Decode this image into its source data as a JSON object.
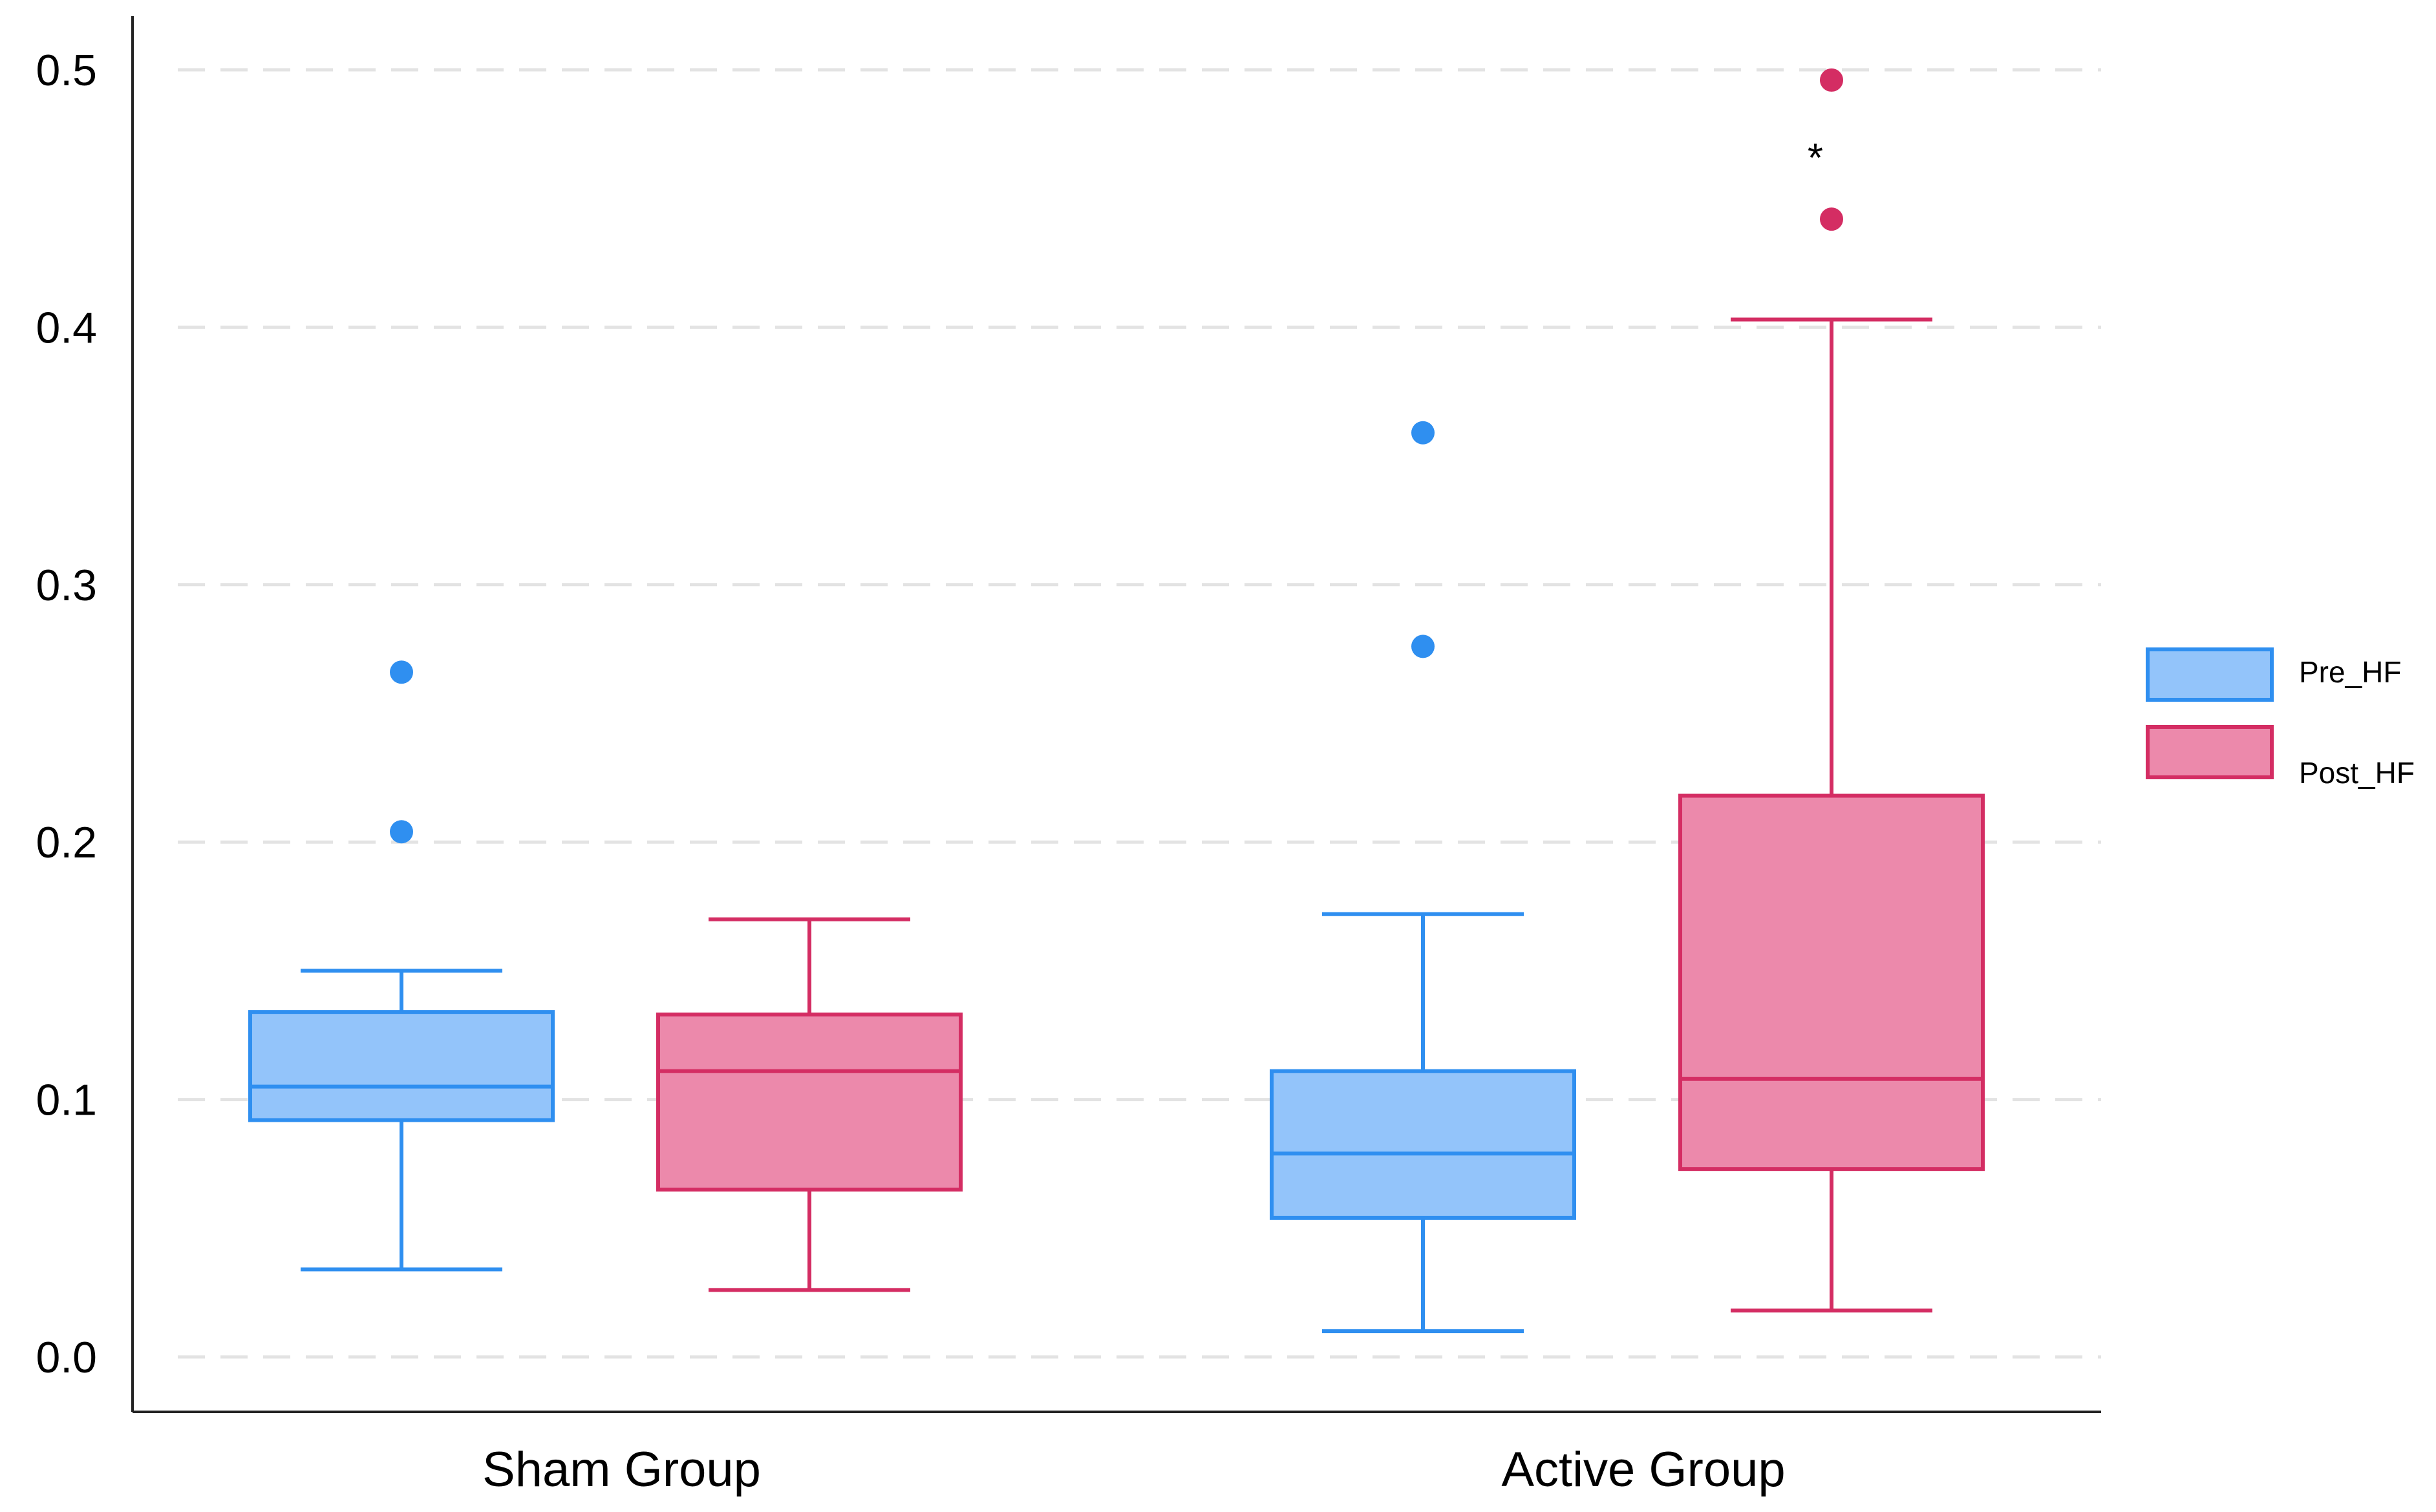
{
  "colors": {
    "pre_fill": "#93c4fa",
    "pre_stroke": "#2f8ff0",
    "post_fill": "#ec89ab",
    "post_stroke": "#d42d63",
    "axis": "#222222",
    "grid": "#e3e3e3",
    "background": "#ffffff"
  },
  "chart_data": {
    "type": "box",
    "title": "",
    "xlabel": "",
    "ylabel": "",
    "ylim": [
      0.0,
      0.5
    ],
    "yticks": [
      "0.0",
      "0.1",
      "0.2",
      "0.3",
      "0.4",
      "0.5"
    ],
    "grid": true,
    "categories": [
      "Sham Group",
      "Active Group"
    ],
    "legend_position": "right",
    "series": [
      {
        "name": "Pre_HF",
        "boxes": [
          {
            "category": "Sham Group",
            "whisker_low": 0.034,
            "q1": 0.092,
            "median": 0.105,
            "q3": 0.134,
            "whisker_high": 0.15,
            "outliers": [
              0.204,
              0.266
            ]
          },
          {
            "category": "Active Group",
            "whisker_low": 0.01,
            "q1": 0.054,
            "median": 0.079,
            "q3": 0.111,
            "whisker_high": 0.172,
            "outliers": [
              0.276,
              0.359
            ]
          }
        ]
      },
      {
        "name": "Post_HF",
        "boxes": [
          {
            "category": "Sham Group",
            "whisker_low": 0.026,
            "q1": 0.065,
            "median": 0.111,
            "q3": 0.133,
            "whisker_high": 0.17,
            "outliers": []
          },
          {
            "category": "Active Group",
            "whisker_low": 0.018,
            "q1": 0.073,
            "median": 0.108,
            "q3": 0.218,
            "whisker_high": 0.403,
            "outliers": [
              0.442,
              0.496
            ]
          }
        ]
      }
    ],
    "annotations": [
      {
        "text": "*",
        "category": "Active Group",
        "series": "Post_HF",
        "y": 0.468
      }
    ]
  }
}
